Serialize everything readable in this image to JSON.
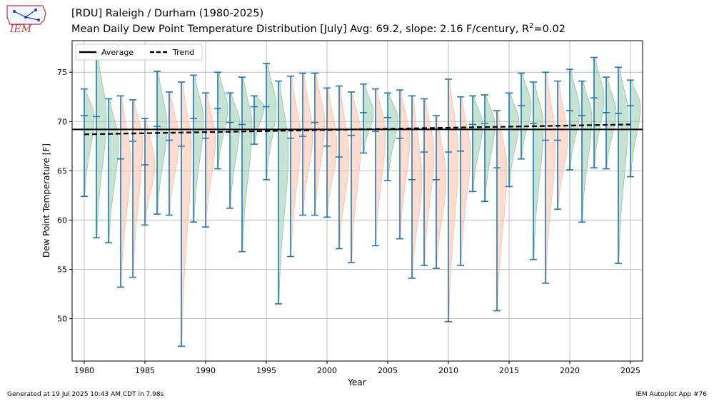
{
  "header": {
    "logo_text": "IEM",
    "title_line1": "[RDU] Raleigh / Durham (1980-2025)",
    "title_line2": "Mean Daily Dew Point Temperature Distribution [July]  Avg: 69.2, slope: 2.16 F/century, R",
    "title_sup": "2",
    "title_tail": "=0.02"
  },
  "footer": {
    "generated": "Generated at 19 Jul 2025 10:43 AM CDT in 7.98s",
    "app": "IEM Autoplot App #76"
  },
  "colors": {
    "above_avg": "#8fc7a7",
    "below_avg": "#fdbba2",
    "whisker": "#1f77b4",
    "avg_line": "#000000",
    "trend_line": "#000000",
    "grid": "#b0b0b0"
  },
  "chart_data": {
    "type": "violin",
    "title": "[RDU] Raleigh / Durham (1980-2025)",
    "subtitle": "Mean Daily Dew Point Temperature Distribution [July]  Avg: 69.2, slope: 2.16 F/century, R^2=0.02",
    "xlabel": "Year",
    "ylabel": "Dew Point Temperature [F]",
    "xlim": [
      1979,
      2026
    ],
    "ylim": [
      45.7,
      78.2
    ],
    "xticks": [
      1980,
      1985,
      1990,
      1995,
      2000,
      2005,
      2010,
      2015,
      2020,
      2025
    ],
    "yticks": [
      50,
      55,
      60,
      65,
      70,
      75
    ],
    "grid": true,
    "legend": {
      "position": "top-left",
      "entries": [
        "Average",
        "Trend"
      ]
    },
    "average": 69.2,
    "trend": {
      "start": [
        1980,
        68.7
      ],
      "end": [
        2025,
        69.7
      ]
    },
    "years": [
      1980,
      1981,
      1982,
      1983,
      1984,
      1985,
      1986,
      1987,
      1988,
      1989,
      1990,
      1991,
      1992,
      1993,
      1994,
      1995,
      1996,
      1997,
      1998,
      1999,
      2000,
      2001,
      2002,
      2003,
      2004,
      2005,
      2006,
      2007,
      2008,
      2009,
      2010,
      2011,
      2012,
      2013,
      2014,
      2015,
      2016,
      2017,
      2018,
      2019,
      2020,
      2021,
      2022,
      2023,
      2024,
      2025
    ],
    "min": [
      62.4,
      58.2,
      57.7,
      53.2,
      54.2,
      59.5,
      60.6,
      60.5,
      47.2,
      59.8,
      59.3,
      65.2,
      61.2,
      56.8,
      67.7,
      64.1,
      51.5,
      56.3,
      60.5,
      60.5,
      60.3,
      57.1,
      55.7,
      66.8,
      57.4,
      64.0,
      58.1,
      54.1,
      55.4,
      55.1,
      49.7,
      55.4,
      62.9,
      61.9,
      50.8,
      63.4,
      66.2,
      56.0,
      53.6,
      61.1,
      65.1,
      59.8,
      65.3,
      65.2,
      55.6,
      64.4
    ],
    "max": [
      73.3,
      77.0,
      72.3,
      72.6,
      72.2,
      70.3,
      75.1,
      73.0,
      74.0,
      74.7,
      72.9,
      75.0,
      72.9,
      74.5,
      72.6,
      75.9,
      74.1,
      74.6,
      74.9,
      74.9,
      73.4,
      73.6,
      73.0,
      73.8,
      73.3,
      72.9,
      73.2,
      72.6,
      72.3,
      70.6,
      74.3,
      72.5,
      72.6,
      72.7,
      71.1,
      72.9,
      74.9,
      74.0,
      75.0,
      74.1,
      75.3,
      74.1,
      76.5,
      74.5,
      75.5,
      74.2
    ],
    "median": [
      70.6,
      70.5,
      null,
      66.2,
      68.0,
      65.6,
      69.5,
      68.1,
      67.5,
      70.3,
      68.3,
      71.3,
      69.9,
      69.7,
      71.5,
      71.5,
      null,
      68.3,
      68.5,
      69.9,
      67.5,
      66.4,
      68.6,
      70.9,
      69.0,
      70.4,
      68.3,
      64.1,
      66.9,
      64.1,
      66.9,
      67.0,
      69.7,
      69.8,
      65.3,
      null,
      71.6,
      69.8,
      68.1,
      68.1,
      71.1,
      70.6,
      72.4,
      70.9,
      70.8,
      71.6
    ],
    "above_average": [
      true,
      true,
      true,
      false,
      false,
      false,
      true,
      false,
      false,
      true,
      false,
      true,
      true,
      true,
      true,
      true,
      true,
      false,
      false,
      false,
      false,
      false,
      false,
      true,
      false,
      true,
      false,
      false,
      false,
      false,
      false,
      false,
      true,
      true,
      false,
      true,
      true,
      true,
      false,
      false,
      true,
      true,
      true,
      true,
      true,
      true
    ]
  }
}
